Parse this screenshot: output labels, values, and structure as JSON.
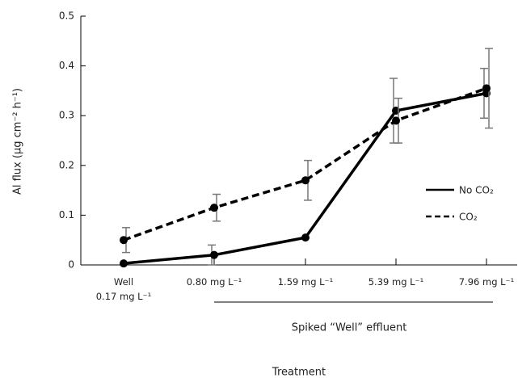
{
  "chart_data": {
    "type": "line",
    "y_label": "Al flux (µg cm⁻² h⁻¹)",
    "x_label": "Treatment",
    "annotation": "Spiked “Well” effluent",
    "categories": [
      "Well\n0.17 mg L⁻¹",
      "0.80 mg L⁻¹",
      "1.59 mg L⁻¹",
      "5.39 mg L⁻¹",
      "7.96 mg L⁻¹"
    ],
    "series": [
      {
        "name": "No CO₂",
        "color": "#000000",
        "dash": false,
        "values": [
          0.003,
          0.02,
          0.055,
          0.31,
          0.345
        ],
        "errors": [
          null,
          0.02,
          null,
          0.065,
          0.05
        ]
      },
      {
        "name": "CO₂",
        "color": "#000000",
        "dash": true,
        "values": [
          0.05,
          0.115,
          0.17,
          0.29,
          0.355
        ],
        "errors": [
          0.025,
          0.027,
          0.04,
          0.045,
          0.08
        ]
      }
    ],
    "ylim": [
      0,
      0.5
    ],
    "yticks": [
      0,
      0.1,
      0.2,
      0.3,
      0.4,
      0.5
    ],
    "grid": false
  }
}
